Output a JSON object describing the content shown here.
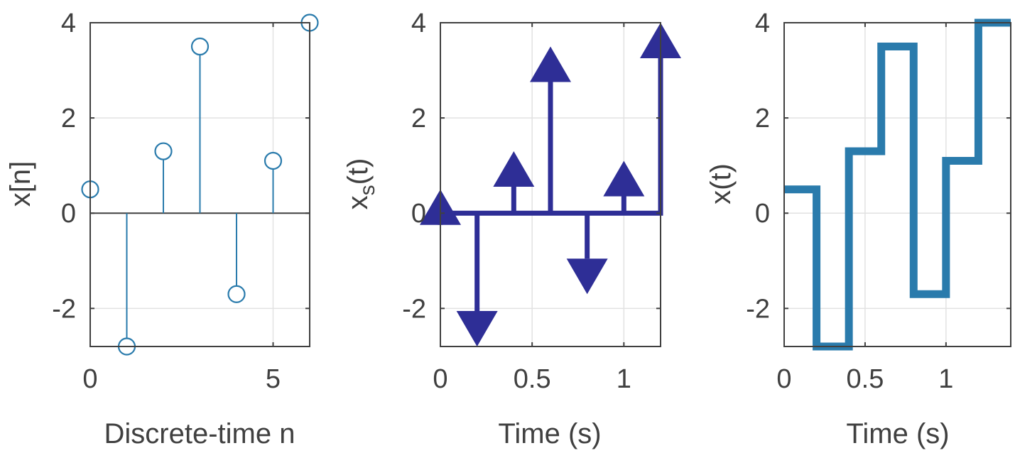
{
  "chart_data": [
    {
      "type": "stem",
      "x": [
        0,
        1,
        2,
        3,
        4,
        5,
        6
      ],
      "values": [
        0.5,
        -2.8,
        1.3,
        3.5,
        -1.7,
        1.1,
        4
      ],
      "xlabel": "Discrete-time n",
      "ylabel": "x[n]",
      "xlim": [
        0,
        6
      ],
      "ylim": [
        -2.8,
        4
      ],
      "xticks": [
        0,
        5
      ],
      "xtick_labels": [
        "0",
        "5"
      ],
      "yticks": [
        -2,
        0,
        2,
        4
      ],
      "ytick_labels": [
        "-2",
        "0",
        "2",
        "4"
      ],
      "grid": true,
      "color": "#2a7bac"
    },
    {
      "type": "impulse_train",
      "x": [
        0,
        0.2,
        0.4,
        0.6,
        0.8,
        1.0,
        1.2
      ],
      "values": [
        0.5,
        -2.8,
        1.3,
        3.5,
        -1.7,
        1.1,
        4
      ],
      "xlabel": "Time (s)",
      "ylabel_main": "x",
      "ylabel_sub": "s",
      "ylabel_tail": "(t)",
      "xlim": [
        0,
        1.2
      ],
      "ylim": [
        -2.8,
        4
      ],
      "xticks": [
        0,
        0.5,
        1
      ],
      "xtick_labels": [
        "0",
        "0.5",
        "1"
      ],
      "yticks": [
        -2,
        0,
        2,
        4
      ],
      "ytick_labels": [
        "-2",
        "0",
        "2",
        "4"
      ],
      "grid": true,
      "color": "#2e2e96"
    },
    {
      "type": "step",
      "x": [
        0,
        0.2,
        0.4,
        0.6,
        0.8,
        1.0,
        1.2
      ],
      "values": [
        0.5,
        -2.8,
        1.3,
        3.5,
        -1.7,
        1.1,
        4
      ],
      "xlabel": "Time (s)",
      "ylabel": "x(t)",
      "xlim": [
        0,
        1.4
      ],
      "ylim": [
        -2.8,
        4
      ],
      "xticks": [
        0,
        0.5,
        1
      ],
      "xtick_labels": [
        "0",
        "0.5",
        "1"
      ],
      "yticks": [
        -2,
        0,
        2,
        4
      ],
      "ytick_labels": [
        "-2",
        "0",
        "2",
        "4"
      ],
      "grid": true,
      "color": "#2a7bac"
    }
  ]
}
